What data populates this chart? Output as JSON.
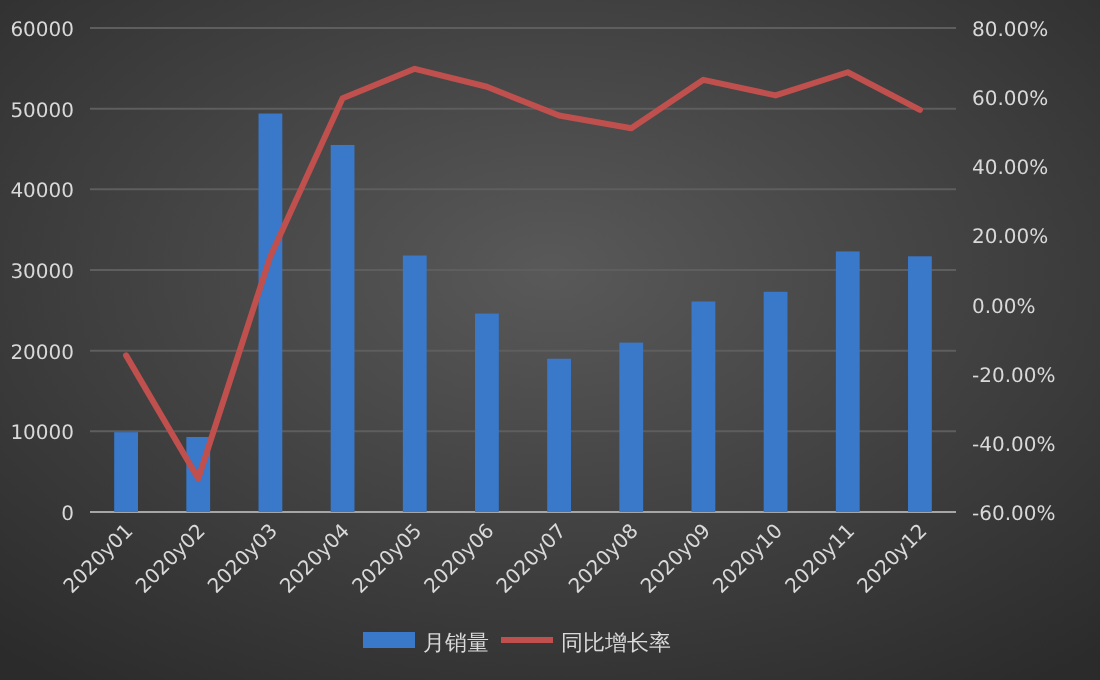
{
  "chart_data": {
    "type": "bar",
    "categories": [
      "2020y01",
      "2020y02",
      "2020y03",
      "2020y04",
      "2020y05",
      "2020y06",
      "2020y07",
      "2020y08",
      "2020y09",
      "2020y10",
      "2020y11",
      "2020y12"
    ],
    "series": [
      {
        "name": "月销量",
        "color": "#3a78c9",
        "values": [
          9900,
          9300,
          49400,
          45500,
          31800,
          24600,
          19000,
          21000,
          26100,
          27300,
          32300,
          31700
        ]
      },
      {
        "name": "同比增长率",
        "type": "line",
        "axis": "y2",
        "color": "#c0504d",
        "values": [
          -14.7,
          -50.3,
          14,
          59.7,
          68.2,
          63,
          54.7,
          51,
          65,
          60.5,
          67.2,
          56.3
        ]
      }
    ],
    "ylim": [
      0,
      60000
    ],
    "yticks": [
      0,
      10000,
      20000,
      30000,
      40000,
      50000,
      60000
    ],
    "y2lim": [
      -60,
      80
    ],
    "y2ticks": [
      {
        "value": -60,
        "label": "-60.00%"
      },
      {
        "value": -40,
        "label": "-40.00%"
      },
      {
        "value": -20,
        "label": "-20.00%"
      },
      {
        "value": 0,
        "label": "0.00%"
      },
      {
        "value": 20,
        "label": "20.00%"
      },
      {
        "value": 40,
        "label": "40.00%"
      },
      {
        "value": 60,
        "label": "60.00%"
      },
      {
        "value": 80,
        "label": "80.00%"
      }
    ],
    "grid": "y",
    "legend": "bottom",
    "marker": "none",
    "line_style": "solid"
  }
}
